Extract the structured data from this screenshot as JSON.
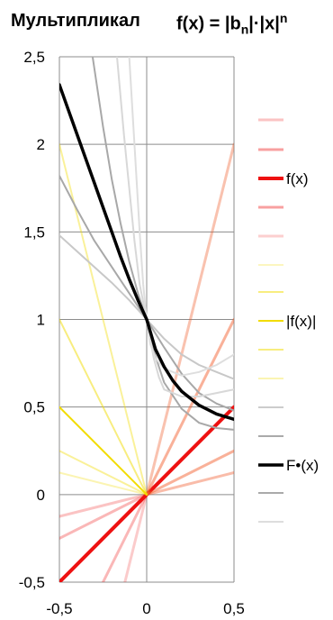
{
  "title": {
    "left": "Мультипликал",
    "eq_pre": "f(x) = |b",
    "eq_sub": "n",
    "eq_mid": "|·|x|",
    "eq_sup": "n"
  },
  "chart_data": {
    "type": "line",
    "title": "Мультипликал  f(x) = |bn|·|x|^n",
    "xlabel": "",
    "ylabel": "",
    "xlim": [
      -0.5,
      0.5
    ],
    "ylim": [
      -0.5,
      2.5
    ],
    "x_ticks": [
      "-0,5",
      "0",
      "0,5"
    ],
    "y_ticks": [
      "-0,5",
      "0",
      "0,5",
      "1",
      "1,5",
      "2",
      "2,5"
    ],
    "grid": true,
    "legend_position": "right",
    "legend": [
      {
        "label": "f(x)",
        "color": "#ee1111"
      },
      {
        "label": "|f(x)|",
        "color": "#f2dc00"
      },
      {
        "label": "F•(x)",
        "color": "#000000"
      }
    ],
    "series": [
      {
        "name": "f(x)",
        "color": "#ee1111",
        "width": 4,
        "opacity": 1,
        "x": [
          -0.5,
          0,
          0.5
        ],
        "y": [
          -0.5,
          0,
          0.5
        ]
      },
      {
        "color": "#ee1111",
        "width": 3,
        "opacity": 0.3,
        "x": [
          -0.5,
          0,
          0.5
        ],
        "y": [
          -0.25,
          0,
          0.25
        ]
      },
      {
        "color": "#ee1111",
        "width": 3,
        "opacity": 0.25,
        "x": [
          -0.5,
          0,
          0.5
        ],
        "y": [
          -0.125,
          0,
          0.125
        ]
      },
      {
        "color": "#ee1111",
        "width": 3,
        "opacity": 0.3,
        "x": [
          -0.25,
          0,
          0.5
        ],
        "y": [
          -0.5,
          0,
          1
        ]
      },
      {
        "color": "#ee1111",
        "width": 3,
        "opacity": 0.22,
        "x": [
          -0.125,
          0,
          0.5
        ],
        "y": [
          -0.5,
          0,
          2
        ]
      },
      {
        "color": "#f7a040",
        "width": 3,
        "opacity": 0.25,
        "x": [
          0,
          0.5
        ],
        "y": [
          0,
          0.25
        ]
      },
      {
        "color": "#f7a040",
        "width": 3,
        "opacity": 0.2,
        "x": [
          0,
          0.5
        ],
        "y": [
          0,
          0.125
        ]
      },
      {
        "color": "#f7a040",
        "width": 3,
        "opacity": 0.25,
        "x": [
          0,
          0.5
        ],
        "y": [
          0,
          1
        ]
      },
      {
        "color": "#f7a040",
        "width": 3,
        "opacity": 0.2,
        "x": [
          0,
          0.5
        ],
        "y": [
          0,
          2
        ]
      },
      {
        "name": "|f(x)|",
        "color": "#f2dc00",
        "width": 2,
        "opacity": 1,
        "x": [
          -0.5,
          0
        ],
        "y": [
          0.5,
          0
        ]
      },
      {
        "color": "#f2dc00",
        "width": 2,
        "opacity": 0.5,
        "x": [
          -0.5,
          0
        ],
        "y": [
          1,
          0
        ]
      },
      {
        "color": "#f2dc00",
        "width": 2,
        "opacity": 0.4,
        "x": [
          -0.5,
          0
        ],
        "y": [
          2,
          0
        ]
      },
      {
        "color": "#f2dc00",
        "width": 2,
        "opacity": 0.4,
        "x": [
          -0.5,
          0
        ],
        "y": [
          0.25,
          0
        ]
      },
      {
        "color": "#f2dc00",
        "width": 2,
        "opacity": 0.3,
        "x": [
          -0.5,
          0
        ],
        "y": [
          0.125,
          0
        ]
      },
      {
        "color": "#c8c8c8",
        "width": 2,
        "opacity": 1,
        "x": [
          -0.5,
          -0.4,
          -0.3,
          -0.2,
          -0.1,
          0,
          0.1,
          0.2,
          0.3,
          0.4,
          0.5
        ],
        "y": [
          1.48,
          1.39,
          1.3,
          1.21,
          1.11,
          1,
          0.89,
          0.8,
          0.74,
          0.7,
          0.66
        ]
      },
      {
        "color": "#a8a8a8",
        "width": 2,
        "opacity": 1,
        "x": [
          -0.5,
          -0.4,
          -0.3,
          -0.2,
          -0.1,
          0,
          0.1,
          0.2,
          0.3,
          0.4,
          0.5
        ],
        "y": [
          1.82,
          1.63,
          1.45,
          1.3,
          1.15,
          1,
          0.84,
          0.69,
          0.58,
          0.52,
          0.48
        ]
      },
      {
        "color": "#a8a8a8",
        "width": 2,
        "opacity": 1,
        "x": [
          -0.31,
          -0.25,
          -0.2,
          -0.15,
          -0.1,
          -0.05,
          0,
          0.05,
          0.1,
          0.2,
          0.3,
          0.4,
          0.5
        ],
        "y": [
          2.5,
          2.1,
          1.8,
          1.55,
          1.33,
          1.15,
          1,
          0.79,
          0.64,
          0.49,
          0.41,
          0.38,
          0.37
        ]
      },
      {
        "color": "#d8d8d8",
        "width": 2,
        "opacity": 1,
        "x": [
          -0.17,
          -0.13,
          -0.1,
          -0.07,
          -0.04,
          0,
          0.04,
          0.07,
          0.1,
          0.2,
          0.3,
          0.4,
          0.5
        ],
        "y": [
          2.5,
          2.05,
          1.75,
          1.45,
          1.2,
          1,
          0.78,
          0.67,
          0.6,
          0.56,
          0.56,
          0.58,
          0.6
        ]
      },
      {
        "color": "#dedede",
        "width": 2,
        "opacity": 1,
        "x": [
          -0.1,
          -0.07,
          -0.04,
          -0.02,
          0,
          0.02,
          0.05,
          0.1,
          0.2,
          0.3,
          0.4,
          0.5
        ],
        "y": [
          2.5,
          2.0,
          1.5,
          1.2,
          1,
          0.86,
          0.78,
          0.72,
          0.68,
          0.7,
          0.74,
          0.8
        ]
      },
      {
        "name": "F•(x)",
        "color": "#000000",
        "width": 3.5,
        "opacity": 1,
        "x": [
          -0.5,
          -0.45,
          -0.4,
          -0.35,
          -0.3,
          -0.25,
          -0.2,
          -0.15,
          -0.1,
          -0.05,
          0,
          0.05,
          0.1,
          0.15,
          0.2,
          0.3,
          0.4,
          0.5
        ],
        "y": [
          2.34,
          2.2,
          2.06,
          1.92,
          1.78,
          1.64,
          1.5,
          1.36,
          1.23,
          1.11,
          1,
          0.83,
          0.73,
          0.65,
          0.59,
          0.51,
          0.46,
          0.43
        ]
      }
    ],
    "legend_swatches": [
      {
        "color": "#ee1111",
        "opacity": 0.25,
        "width": 3
      },
      {
        "color": "#ee1111",
        "opacity": 0.4,
        "width": 3
      },
      {
        "color": "#ee1111",
        "opacity": 1,
        "width": 4
      },
      {
        "color": "#ee1111",
        "opacity": 0.4,
        "width": 3
      },
      {
        "color": "#ee1111",
        "opacity": 0.2,
        "width": 3
      },
      {
        "color": "#f2dc00",
        "opacity": 0.25,
        "width": 2
      },
      {
        "color": "#f2dc00",
        "opacity": 0.5,
        "width": 2
      },
      {
        "color": "#f2dc00",
        "opacity": 1,
        "width": 2
      },
      {
        "color": "#f2dc00",
        "opacity": 0.5,
        "width": 2
      },
      {
        "color": "#f2dc00",
        "opacity": 0.3,
        "width": 2
      },
      {
        "color": "#cccccc",
        "opacity": 1,
        "width": 2
      },
      {
        "color": "#aaaaaa",
        "opacity": 1,
        "width": 2
      },
      {
        "color": "#000000",
        "opacity": 1,
        "width": 3.5
      },
      {
        "color": "#aaaaaa",
        "opacity": 1,
        "width": 2
      },
      {
        "color": "#dddddd",
        "opacity": 1,
        "width": 2
      }
    ]
  }
}
